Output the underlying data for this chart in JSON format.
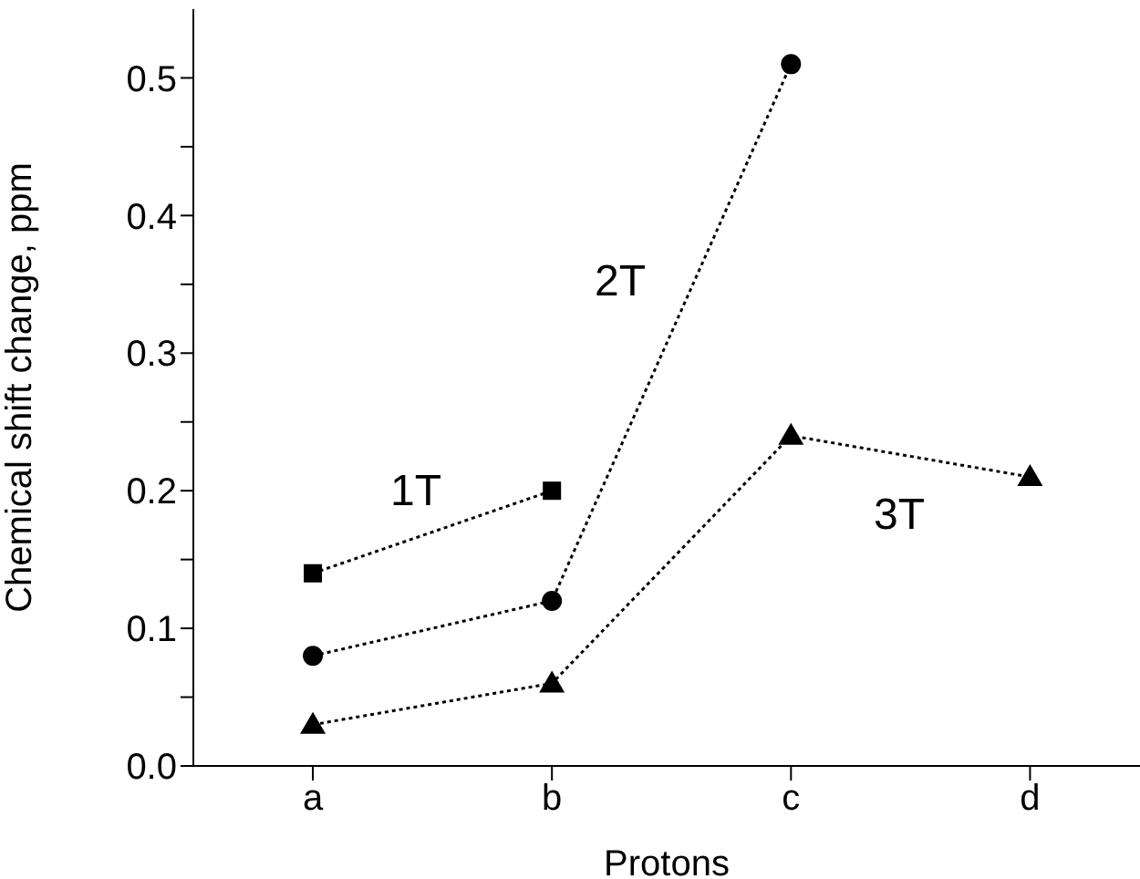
{
  "chart_data": {
    "type": "line",
    "xlabel": "Protons",
    "ylabel": "Chemical shift change, ppm",
    "categories": [
      "a",
      "b",
      "c",
      "d"
    ],
    "series": [
      {
        "name": "1T",
        "color": "#000000",
        "marker": "square",
        "values": [
          0.14,
          0.2,
          null,
          null
        ]
      },
      {
        "name": "2T",
        "color": "#000000",
        "marker": "circle",
        "values": [
          0.08,
          0.12,
          0.51,
          null
        ]
      },
      {
        "name": "3T",
        "color": "#000000",
        "marker": "triangle",
        "values": [
          0.03,
          0.06,
          0.24,
          0.21
        ]
      }
    ],
    "ylim": [
      0,
      0.55
    ],
    "yticks": [
      {
        "value": 0,
        "label": "0.0"
      },
      {
        "value": 0.05,
        "label": null
      },
      {
        "value": 0.1,
        "label": "0.1"
      },
      {
        "value": 0.15,
        "label": null
      },
      {
        "value": 0.2,
        "label": "0.2"
      },
      {
        "value": 0.25,
        "label": null
      },
      {
        "value": 0.3,
        "label": "0.3"
      },
      {
        "value": 0.35,
        "label": null
      },
      {
        "value": 0.4,
        "label": "0.4"
      },
      {
        "value": 0.45,
        "label": null
      },
      {
        "value": 0.5,
        "label": "0.5"
      }
    ],
    "grid": false,
    "legend": false,
    "line_style": "dotted"
  }
}
